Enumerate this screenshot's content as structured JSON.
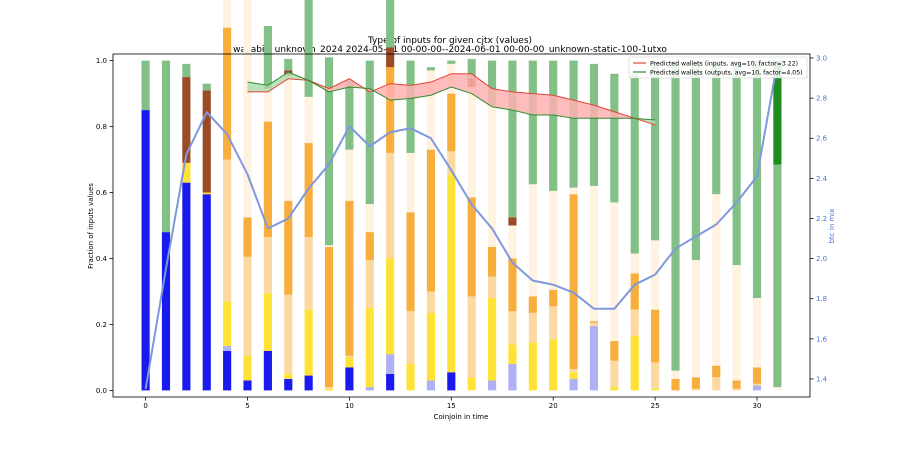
{
  "chart_data": {
    "type": "bar",
    "title": "Type of inputs for given cjtx (values)",
    "subtitle": "wasabi2_unknown_2024 2024-05-01 00-00-00--2024-06-01 00-00-00_unknown-static-100-1utxo",
    "xlabel": "Coinjoin in time",
    "ylabel": "Fraction of inputs values",
    "y2label": "btc in mix",
    "xlim": [
      -1.6,
      32.6
    ],
    "ylim": [
      -0.02,
      1.02
    ],
    "y2lim": [
      1.31,
      3.02
    ],
    "x_ticks": [
      0,
      5,
      10,
      15,
      20,
      25,
      30
    ],
    "y_ticks": [
      0.0,
      0.2,
      0.4,
      0.6,
      0.8,
      1.0
    ],
    "y_tick_labels": [
      "0.0",
      "0.2",
      "0.4",
      "0.6",
      "0.8",
      "1.0"
    ],
    "y2_ticks": [
      1.4,
      1.6,
      1.8,
      2.0,
      2.2,
      2.4,
      2.6,
      2.8,
      3.0
    ],
    "y2_tick_labels": [
      "1.4",
      "1.6",
      "1.8",
      "2.0",
      "2.2",
      "2.4",
      "2.6",
      "2.8",
      "3.0"
    ],
    "grid": false,
    "legend_position": "top-right",
    "x": [
      0,
      1,
      2,
      3,
      4,
      5,
      6,
      7,
      8,
      9,
      10,
      11,
      12,
      13,
      14,
      15,
      16,
      17,
      18,
      19,
      20,
      21,
      22,
      23,
      24,
      25,
      26,
      27,
      28,
      29,
      30,
      31
    ],
    "stacked_series": [
      {
        "name": "blue",
        "color": "#1a1aee",
        "values": [
          0.85,
          0.48,
          0.63,
          0.595,
          0.12,
          0.03,
          0.12,
          0.035,
          0.045,
          0,
          0.07,
          0,
          0.05,
          0,
          0,
          0.055,
          0,
          0,
          0,
          0,
          0,
          0,
          0,
          0,
          0,
          0,
          0,
          0,
          0,
          0,
          0,
          0
        ]
      },
      {
        "name": "light-blue",
        "color": "#b0b0f5",
        "values": [
          0,
          0,
          0,
          0,
          0.015,
          0,
          0,
          0,
          0,
          0,
          0,
          0.01,
          0.06,
          0,
          0.03,
          0,
          0,
          0.03,
          0.08,
          0,
          0,
          0.035,
          0.195,
          0,
          0,
          0,
          0,
          0,
          0,
          0,
          0.015,
          0
        ]
      },
      {
        "name": "yellow",
        "color": "#ffe236",
        "values": [
          0,
          0,
          0.06,
          0.005,
          0.135,
          0.075,
          0.175,
          0.015,
          0.2,
          0.005,
          0.03,
          0.24,
          0.29,
          0.08,
          0.205,
          0.6,
          0.04,
          0.25,
          0.06,
          0.145,
          0.155,
          0.02,
          0,
          0.01,
          0.165,
          0.005,
          0,
          0,
          0,
          0,
          0,
          0
        ]
      },
      {
        "name": "pale-orange",
        "color": "#fcd9a0",
        "values": [
          0,
          0,
          0,
          0,
          0.43,
          0.3,
          0.17,
          0.24,
          0.22,
          0.005,
          0.005,
          0.145,
          0.32,
          0.16,
          0.065,
          0.07,
          0.245,
          0.065,
          0.1,
          0.09,
          0.1,
          0.01,
          0.01,
          0.08,
          0.08,
          0.08,
          0,
          0.005,
          0.04,
          0.005,
          0.005,
          0
        ]
      },
      {
        "name": "orange",
        "color": "#f7ae3c",
        "values": [
          0,
          0,
          0,
          0,
          0.4,
          0.12,
          0.35,
          0.285,
          0.285,
          0.425,
          0.47,
          0.085,
          0.26,
          0.3,
          0.43,
          0.175,
          0.3,
          0.09,
          0.16,
          0.05,
          0.05,
          0.53,
          0.005,
          0.06,
          0.11,
          0.16,
          0.035,
          0.035,
          0.035,
          0.025,
          0.05,
          0
        ]
      },
      {
        "name": "cream",
        "color": "#fff2e0",
        "values": [
          0,
          0,
          0,
          0,
          0.25,
          0.675,
          0.1,
          0.38,
          0.14,
          0.005,
          0.155,
          0.085,
          0.0,
          0.18,
          0.24,
          0.09,
          0.335,
          0.43,
          0.1,
          0.34,
          0.3,
          0.02,
          0.41,
          0.42,
          0.06,
          0.21,
          0.025,
          0.355,
          0.52,
          0.35,
          0.21,
          0.01
        ]
      },
      {
        "name": "brown",
        "color": "#9b4a26",
        "values": [
          0,
          0,
          0.26,
          0.31,
          0.01,
          0.0,
          0.005,
          0.015,
          0,
          0.0,
          0,
          0,
          0.06,
          0,
          0,
          0,
          0.02,
          0,
          0.025,
          0,
          0,
          0,
          0,
          0,
          0,
          0,
          0,
          0,
          0,
          0,
          0,
          0
        ]
      },
      {
        "name": "dark-red",
        "color": "#c01010",
        "values": [
          0,
          0,
          0,
          0,
          0,
          0,
          0,
          0,
          0,
          0,
          0,
          0,
          0,
          0,
          0,
          0,
          0.005,
          0,
          0,
          0,
          0,
          0,
          0,
          0,
          0,
          0,
          0,
          0,
          0,
          0,
          0,
          0
        ]
      },
      {
        "name": "light-green",
        "color": "#82c087",
        "values": [
          0.15,
          0.52,
          0.04,
          0.02,
          0.03,
          0,
          0.185,
          0.035,
          0.33,
          0.57,
          0.21,
          0.435,
          0.22,
          0.28,
          0.01,
          0.01,
          0.06,
          0.135,
          0.475,
          0.375,
          0.395,
          0.385,
          0.37,
          0.39,
          0.545,
          0.545,
          0.94,
          0.605,
          0.405,
          0.62,
          0.72,
          0.675
        ]
      },
      {
        "name": "dark-green",
        "color": "#1e8c1e",
        "values": [
          0,
          0,
          0,
          0,
          0,
          0,
          0,
          0,
          0,
          0,
          0,
          0,
          0,
          0,
          0,
          0,
          0,
          0,
          0,
          0,
          0,
          0,
          0,
          0,
          0,
          0,
          0,
          0,
          0,
          0,
          0,
          0.315
        ]
      }
    ],
    "btc_in_mix": {
      "axis": "right",
      "color": "#7f98dd",
      "values": [
        1.35,
        1.95,
        2.52,
        2.73,
        2.62,
        2.42,
        2.15,
        2.2,
        2.35,
        2.47,
        2.66,
        2.56,
        2.63,
        2.65,
        2.6,
        2.44,
        2.27,
        2.15,
        1.98,
        1.89,
        1.87,
        1.83,
        1.75,
        1.75,
        1.87,
        1.92,
        2.05,
        2.11,
        2.17,
        2.28,
        2.41,
        2.98
      ]
    },
    "predicted_wallets_inputs": {
      "name": "Predicted wallets (inputs, avg=10, factor=3.22)",
      "color": "#e0443a",
      "x": [
        5,
        6,
        7,
        8,
        9,
        10,
        11,
        12,
        13,
        14,
        15,
        16,
        17,
        18,
        19,
        20,
        21,
        22,
        23,
        24,
        25
      ],
      "values": [
        0.905,
        0.905,
        0.945,
        0.94,
        0.915,
        0.945,
        0.905,
        0.93,
        0.925,
        0.935,
        0.96,
        0.96,
        0.915,
        0.905,
        0.9,
        0.895,
        0.88,
        0.865,
        0.845,
        0.825,
        0.805
      ]
    },
    "predicted_wallets_outputs": {
      "name": "Predicted wallets (outputs, avg=10, factor=4.05)",
      "color": "#2e8b2e",
      "x": [
        5,
        6,
        7,
        8,
        9,
        10,
        11,
        12,
        13,
        14,
        15,
        16,
        17,
        18,
        19,
        20,
        21,
        22,
        23,
        24,
        25
      ],
      "values": [
        0.935,
        0.925,
        0.965,
        0.94,
        0.905,
        0.92,
        0.915,
        0.88,
        0.885,
        0.895,
        0.92,
        0.9,
        0.86,
        0.85,
        0.835,
        0.835,
        0.825,
        0.825,
        0.825,
        0.825,
        0.82
      ]
    }
  }
}
